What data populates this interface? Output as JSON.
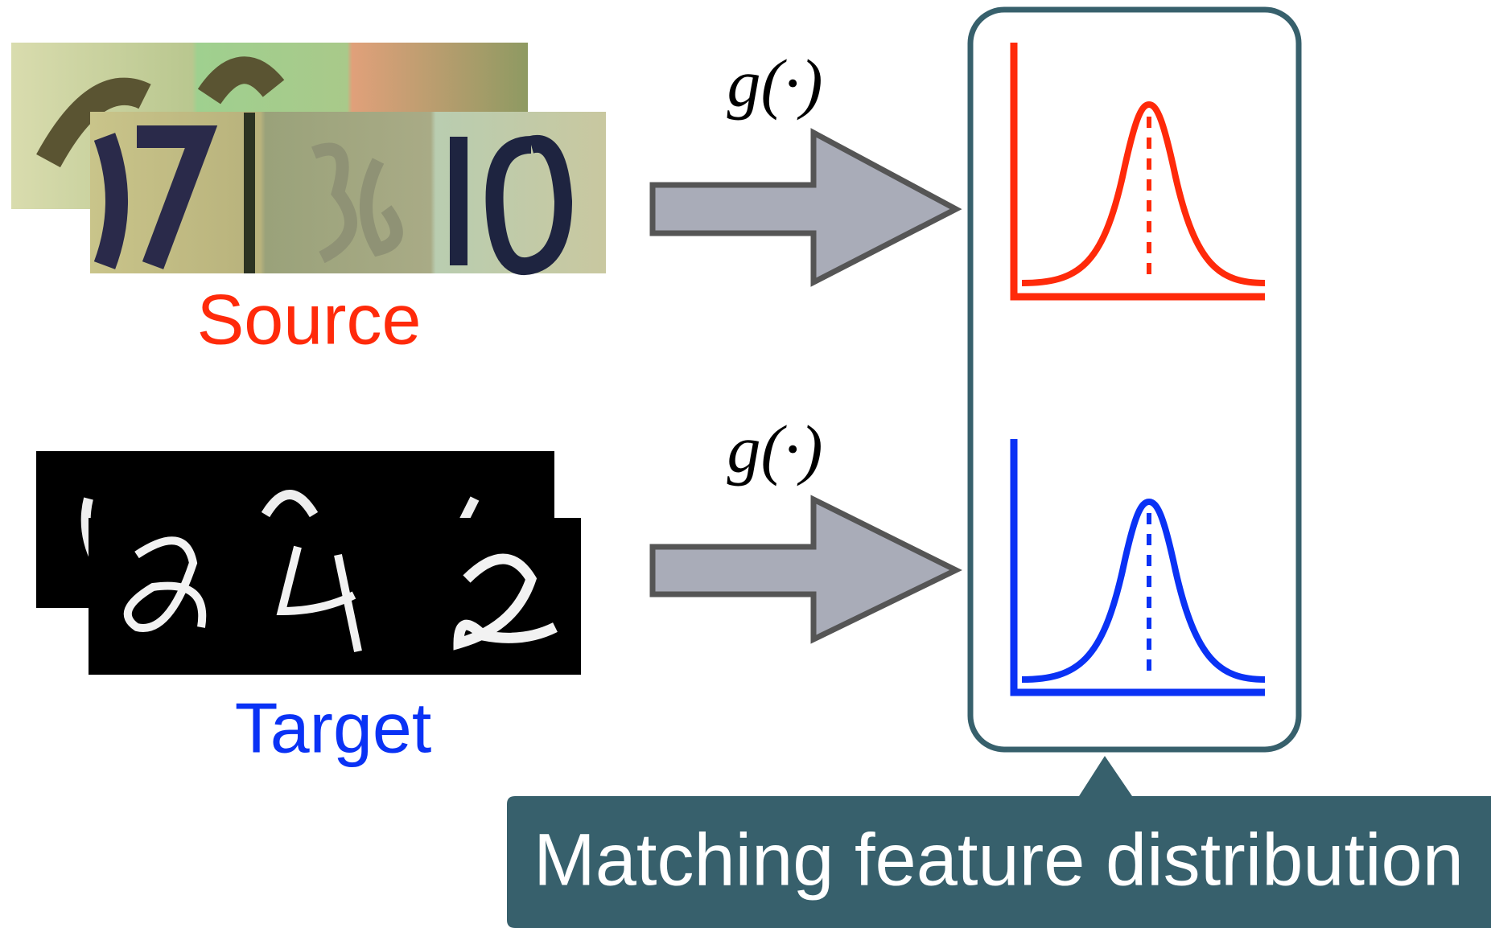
{
  "source": {
    "label": "Source"
  },
  "target": {
    "label": "Target"
  },
  "arrows": [
    {
      "label": "g(·)"
    },
    {
      "label": "g(·)"
    }
  ],
  "callout": {
    "text": "Matching feature distribution"
  }
}
